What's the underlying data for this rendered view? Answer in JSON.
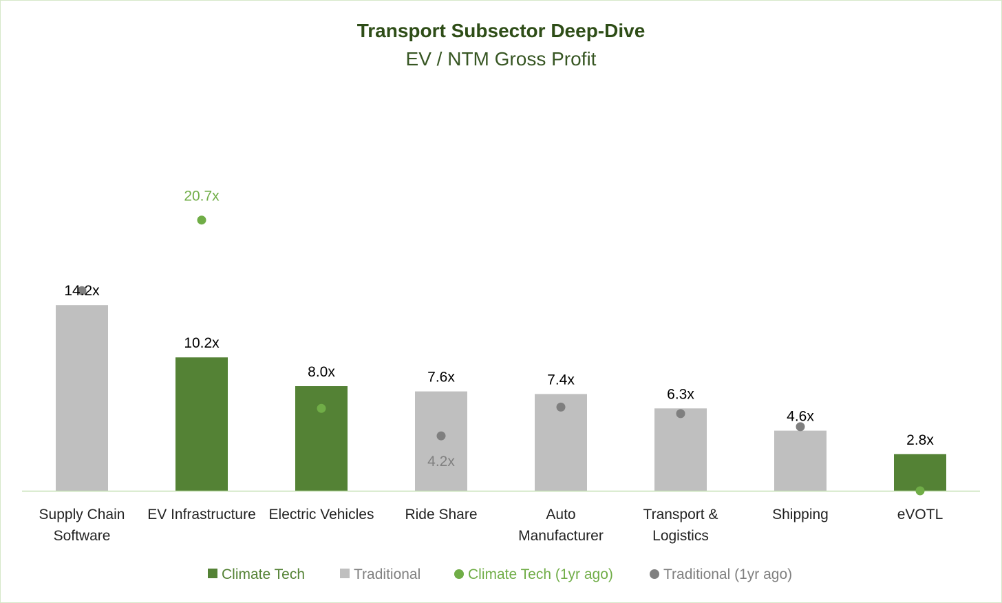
{
  "chart_data": {
    "type": "bar",
    "title": "Transport Subsector Deep-Dive",
    "subtitle": "EV / NTM Gross Profit",
    "xlabel": "",
    "ylabel": "",
    "ylim": [
      0,
      22
    ],
    "grid": false,
    "legend_position": "bottom",
    "categories": [
      [
        "Supply Chain",
        "Software"
      ],
      [
        "EV Infrastructure"
      ],
      [
        "Electric Vehicles"
      ],
      [
        "Ride Share"
      ],
      [
        "Auto",
        "Manufacturer"
      ],
      [
        "Transport &",
        "Logistics"
      ],
      [
        "Shipping"
      ],
      [
        "eVOTL"
      ]
    ],
    "values": [
      14.2,
      10.2,
      8.0,
      7.6,
      7.4,
      6.3,
      4.6,
      2.8
    ],
    "value_labels": [
      "14.2x",
      "10.2x",
      "8.0x",
      "7.6x",
      "7.4x",
      "6.3x",
      "4.6x",
      "2.8x"
    ],
    "group": [
      "Traditional",
      "Climate Tech",
      "Climate Tech",
      "Traditional",
      "Traditional",
      "Traditional",
      "Traditional",
      "Climate Tech"
    ],
    "one_year_ago": [
      15.3,
      20.7,
      6.3,
      4.2,
      6.4,
      5.9,
      4.9,
      0.0
    ],
    "one_year_ago_labels": [
      null,
      "20.7x",
      null,
      "4.2x",
      null,
      null,
      null,
      null
    ],
    "legend": [
      "Climate Tech",
      "Traditional",
      "Climate Tech (1yr ago)",
      "Traditional (1yr ago)"
    ],
    "colors": {
      "Climate Tech": "#548235",
      "Traditional": "#BFBFBF",
      "Climate Tech (1yr ago)": "#70AD47",
      "Traditional (1yr ago)": "#7F7F7F",
      "title": "#2E4D17",
      "subtitle": "#375623",
      "axis": "#C5E0B4"
    }
  }
}
